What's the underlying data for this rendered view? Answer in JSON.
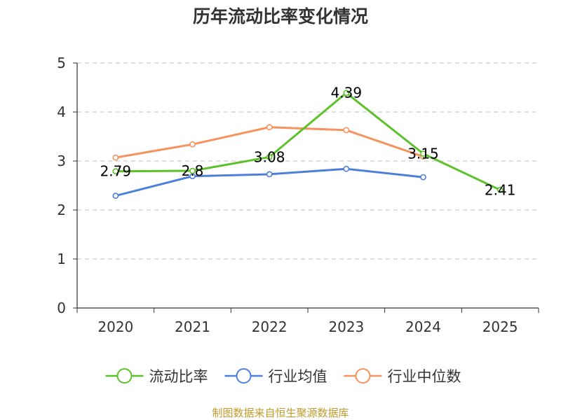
{
  "chart_data": {
    "type": "line",
    "title": "历年流动比率变化情况",
    "categories": [
      "2020",
      "2021",
      "2022",
      "2023",
      "2024",
      "2025"
    ],
    "ylim": [
      0,
      5
    ],
    "yticks": [
      0,
      1,
      2,
      3,
      4,
      5
    ],
    "grid": true,
    "legend_position": "bottom",
    "series": [
      {
        "name": "流动比率",
        "color": "#5cc12a",
        "values": [
          2.79,
          2.8,
          3.08,
          4.39,
          3.15,
          2.41
        ],
        "labels": [
          "2.79",
          "2.8",
          "3.08",
          "4.39",
          "3.15",
          "2.41"
        ]
      },
      {
        "name": "行业均值",
        "color": "#4e7fd9",
        "values": [
          2.29,
          2.69,
          2.73,
          2.84,
          2.67,
          null
        ]
      },
      {
        "name": "行业中位数",
        "color": "#f5925e",
        "values": [
          3.07,
          3.34,
          3.69,
          3.63,
          3.09,
          null
        ]
      }
    ]
  },
  "source": "制图数据来自恒生聚源数据库"
}
